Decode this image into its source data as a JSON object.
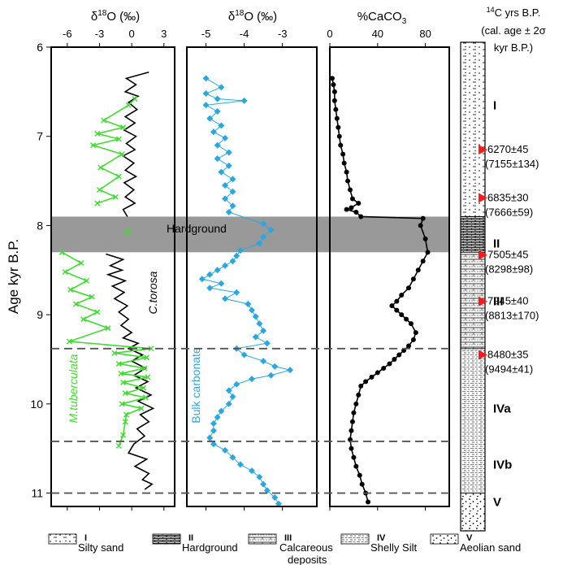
{
  "chart_data": [
    {
      "type": "line",
      "title": "δ18O (‰)",
      "xlim": [
        -7.5,
        4
      ],
      "xticks": [
        "-6",
        "-3",
        "0",
        "3"
      ],
      "ylabel": "Age kyr B.P.",
      "ylim": [
        11.15,
        6
      ],
      "yticks": [
        "6",
        "7",
        "8",
        "9",
        "10",
        "11"
      ],
      "series": [
        {
          "name": "C.torosa",
          "color": "#000000",
          "points": [
            [
              1.6,
              6.28
            ],
            [
              -0.5,
              6.35
            ],
            [
              0.4,
              6.42
            ],
            [
              -0.6,
              6.5
            ],
            [
              0.6,
              6.55
            ],
            [
              -0.3,
              6.62
            ],
            [
              0.5,
              6.7
            ],
            [
              -0.6,
              6.78
            ],
            [
              0.3,
              6.85
            ],
            [
              -0.7,
              6.93
            ],
            [
              0.4,
              7.0
            ],
            [
              -0.5,
              7.08
            ],
            [
              0.3,
              7.15
            ],
            [
              -0.8,
              7.22
            ],
            [
              0.2,
              7.3
            ],
            [
              -0.6,
              7.38
            ],
            [
              0.4,
              7.45
            ],
            [
              -0.7,
              7.52
            ],
            [
              0.2,
              7.6
            ],
            [
              -0.6,
              7.68
            ],
            [
              0.3,
              7.75
            ],
            [
              -0.8,
              7.82
            ],
            [
              -0.4,
              7.9
            ],
            [
              -2.4,
              8.32
            ],
            [
              -0.8,
              8.38
            ],
            [
              -2.0,
              8.45
            ],
            [
              -0.9,
              8.5
            ],
            [
              -2.2,
              8.55
            ],
            [
              -0.6,
              8.62
            ],
            [
              -1.8,
              8.68
            ],
            [
              -0.7,
              8.75
            ],
            [
              -1.6,
              8.82
            ],
            [
              -0.4,
              8.9
            ],
            [
              -1.2,
              8.97
            ],
            [
              -0.3,
              9.05
            ],
            [
              -1.0,
              9.12
            ],
            [
              0.0,
              9.2
            ],
            [
              -0.8,
              9.26
            ],
            [
              0.6,
              9.32
            ],
            [
              -0.3,
              9.38
            ],
            [
              1.0,
              9.45
            ],
            [
              0.0,
              9.52
            ],
            [
              1.3,
              9.6
            ],
            [
              0.2,
              9.68
            ],
            [
              1.5,
              9.75
            ],
            [
              0.4,
              9.82
            ],
            [
              1.8,
              9.9
            ],
            [
              0.6,
              9.97
            ],
            [
              2.0,
              10.05
            ],
            [
              0.8,
              10.12
            ],
            [
              1.6,
              10.2
            ],
            [
              0.5,
              10.28
            ],
            [
              1.2,
              10.36
            ],
            [
              0.2,
              10.45
            ],
            [
              -0.3,
              10.55
            ],
            [
              1.4,
              10.62
            ],
            [
              0.3,
              10.7
            ],
            [
              1.6,
              10.78
            ],
            [
              1.0,
              10.85
            ],
            [
              1.9,
              10.9
            ],
            [
              1.2,
              10.96
            ]
          ]
        },
        {
          "name": "M.tuberculata",
          "color": "#3fdc2f",
          "points": [
            [
              0.3,
              6.58
            ],
            [
              -0.3,
              6.65
            ],
            [
              -2.6,
              6.82
            ],
            [
              -0.8,
              6.9
            ],
            [
              -3.2,
              6.97
            ],
            [
              -1.2,
              7.03
            ],
            [
              -3.6,
              7.1
            ],
            [
              -0.9,
              7.2
            ],
            [
              -2.9,
              7.35
            ],
            [
              -1.2,
              7.45
            ],
            [
              -3.0,
              7.6
            ],
            [
              -1.5,
              7.68
            ],
            [
              -3.2,
              7.75
            ],
            [
              -6.5,
              8.3
            ],
            [
              -4.7,
              8.42
            ],
            [
              -6.2,
              8.52
            ],
            [
              -4.2,
              8.62
            ],
            [
              -5.7,
              8.72
            ],
            [
              -3.7,
              8.8
            ],
            [
              -5.2,
              8.88
            ],
            [
              -3.2,
              8.97
            ],
            [
              -4.5,
              9.05
            ],
            [
              -2.2,
              9.15
            ],
            [
              -5.8,
              9.3
            ],
            [
              1.8,
              9.38
            ],
            [
              -1.6,
              9.43
            ],
            [
              1.4,
              9.48
            ],
            [
              -1.2,
              9.55
            ],
            [
              1.2,
              9.6
            ],
            [
              -1.0,
              9.66
            ],
            [
              1.5,
              9.7
            ],
            [
              -0.8,
              9.76
            ],
            [
              1.1,
              9.82
            ],
            [
              -0.6,
              9.88
            ],
            [
              1.3,
              9.93
            ],
            [
              -0.9,
              10.0
            ],
            [
              0.9,
              10.05
            ],
            [
              -0.5,
              10.12
            ],
            [
              -0.6,
              10.2
            ],
            [
              -0.8,
              10.35
            ],
            [
              -1.2,
              10.47
            ]
          ]
        }
      ],
      "isolated_points": [
        {
          "name": "Hardground",
          "x": -0.4,
          "y": 8.07
        }
      ],
      "annotations": [
        "Hardground",
        "C.torosa",
        "M.tuberculata"
      ]
    },
    {
      "type": "line",
      "title": "δ18O (‰)",
      "xlim": [
        -5.5,
        -2.1
      ],
      "xticks": [
        "-5",
        "-4",
        "-3"
      ],
      "ylim": [
        11.15,
        6
      ],
      "series": [
        {
          "name": "Bulk carbonate",
          "color": "#29a8e0",
          "points": [
            [
              -5.0,
              6.35
            ],
            [
              -4.6,
              6.45
            ],
            [
              -5.0,
              6.52
            ],
            [
              -4.7,
              6.58
            ],
            [
              -4.0,
              6.6
            ],
            [
              -5.0,
              6.65
            ],
            [
              -4.7,
              6.72
            ],
            [
              -4.9,
              6.8
            ],
            [
              -4.6,
              6.88
            ],
            [
              -4.8,
              6.95
            ],
            [
              -4.5,
              7.02
            ],
            [
              -4.7,
              7.1
            ],
            [
              -4.4,
              7.18
            ],
            [
              -4.7,
              7.25
            ],
            [
              -4.4,
              7.33
            ],
            [
              -4.6,
              7.4
            ],
            [
              -4.3,
              7.48
            ],
            [
              -4.5,
              7.55
            ],
            [
              -4.3,
              7.62
            ],
            [
              -4.5,
              7.7
            ],
            [
              -4.3,
              7.78
            ],
            [
              -4.4,
              7.85
            ],
            [
              -3.5,
              7.98
            ],
            [
              -3.3,
              8.05
            ],
            [
              -3.5,
              8.13
            ],
            [
              -3.6,
              8.2
            ],
            [
              -4.1,
              8.28
            ],
            [
              -4.2,
              8.34
            ],
            [
              -4.3,
              8.4
            ],
            [
              -4.5,
              8.45
            ],
            [
              -4.7,
              8.5
            ],
            [
              -4.9,
              8.55
            ],
            [
              -5.1,
              8.6
            ],
            [
              -4.6,
              8.65
            ],
            [
              -4.9,
              8.7
            ],
            [
              -4.2,
              8.75
            ],
            [
              -4.5,
              8.82
            ],
            [
              -3.9,
              8.88
            ],
            [
              -3.8,
              8.95
            ],
            [
              -3.7,
              9.02
            ],
            [
              -3.6,
              9.1
            ],
            [
              -3.5,
              9.18
            ],
            [
              -3.7,
              9.25
            ],
            [
              -3.4,
              9.32
            ],
            [
              -4.2,
              9.38
            ],
            [
              -4.0,
              9.45
            ],
            [
              -3.5,
              9.52
            ],
            [
              -3.2,
              9.58
            ],
            [
              -2.8,
              9.62
            ],
            [
              -3.3,
              9.68
            ],
            [
              -3.8,
              9.72
            ],
            [
              -4.2,
              9.78
            ],
            [
              -4.4,
              9.85
            ],
            [
              -4.3,
              9.92
            ],
            [
              -4.4,
              10.0
            ],
            [
              -4.6,
              10.08
            ],
            [
              -4.7,
              10.15
            ],
            [
              -4.8,
              10.22
            ],
            [
              -4.8,
              10.3
            ],
            [
              -4.9,
              10.38
            ],
            [
              -4.8,
              10.45
            ],
            [
              -4.5,
              10.52
            ],
            [
              -4.3,
              10.6
            ],
            [
              -4.1,
              10.68
            ],
            [
              -3.8,
              10.75
            ],
            [
              -3.6,
              10.82
            ],
            [
              -3.5,
              10.9
            ],
            [
              -3.4,
              10.97
            ],
            [
              -3.2,
              11.05
            ],
            [
              -3.1,
              11.12
            ]
          ]
        }
      ],
      "annotations": [
        "Bulk carbonate"
      ]
    },
    {
      "type": "line",
      "title": "%CaCO3",
      "xlim": [
        0,
        100
      ],
      "xticks": [
        "0",
        "40",
        "80"
      ],
      "ylim": [
        11.15,
        6
      ],
      "series": [
        {
          "name": "%CaCO3",
          "color": "#000000",
          "points": [
            [
              2,
              6.35
            ],
            [
              3,
              6.42
            ],
            [
              4,
              6.5
            ],
            [
              4,
              6.6
            ],
            [
              5,
              6.7
            ],
            [
              6,
              6.8
            ],
            [
              7,
              6.9
            ],
            [
              8,
              7.0
            ],
            [
              9,
              7.1
            ],
            [
              11,
              7.2
            ],
            [
              12,
              7.3
            ],
            [
              14,
              7.4
            ],
            [
              15,
              7.5
            ],
            [
              17,
              7.6
            ],
            [
              19,
              7.7
            ],
            [
              24,
              7.75
            ],
            [
              18,
              7.8
            ],
            [
              14,
              7.82
            ],
            [
              22,
              7.85
            ],
            [
              26,
              7.9
            ],
            [
              78,
              7.92
            ],
            [
              76,
              8.0
            ],
            [
              80,
              8.15
            ],
            [
              82,
              8.3
            ],
            [
              78,
              8.4
            ],
            [
              74,
              8.5
            ],
            [
              70,
              8.6
            ],
            [
              66,
              8.7
            ],
            [
              60,
              8.78
            ],
            [
              56,
              8.85
            ],
            [
              52,
              8.9
            ],
            [
              56,
              8.95
            ],
            [
              60,
              9.0
            ],
            [
              64,
              9.05
            ],
            [
              68,
              9.1
            ],
            [
              72,
              9.2
            ],
            [
              70,
              9.28
            ],
            [
              66,
              9.35
            ],
            [
              62,
              9.4
            ],
            [
              58,
              9.45
            ],
            [
              54,
              9.5
            ],
            [
              50,
              9.55
            ],
            [
              45,
              9.6
            ],
            [
              40,
              9.65
            ],
            [
              35,
              9.7
            ],
            [
              30,
              9.75
            ],
            [
              26,
              9.8
            ],
            [
              24,
              9.9
            ],
            [
              22,
              10.0
            ],
            [
              20,
              10.1
            ],
            [
              19,
              10.2
            ],
            [
              18,
              10.3
            ],
            [
              17,
              10.4
            ],
            [
              18,
              10.5
            ],
            [
              20,
              10.6
            ],
            [
              22,
              10.7
            ],
            [
              25,
              10.8
            ],
            [
              27,
              10.9
            ],
            [
              30,
              11.0
            ],
            [
              32,
              11.1
            ]
          ]
        }
      ]
    }
  ],
  "hardground_band": {
    "y_top": 7.9,
    "y_bottom": 8.3,
    "color": "#999999"
  },
  "dashed_lines_y": [
    9.38,
    10.42,
    11.0
  ],
  "lithology": {
    "header_line1": "14C yrs B.P.",
    "header_line2": "(cal. age ± 2σ",
    "header_line3": "kyr B.P.)",
    "units": [
      {
        "label": "I",
        "y": 6.65
      },
      {
        "label": "II",
        "y": 8.2
      },
      {
        "label": "III",
        "y": 8.85
      },
      {
        "label": "IVa",
        "y": 10.05
      },
      {
        "label": "IVb",
        "y": 10.68
      },
      {
        "label": "V",
        "y": 11.1
      }
    ],
    "dates": [
      {
        "y": 7.15,
        "c14": "6270±45",
        "cal": "(7155±134)"
      },
      {
        "y": 7.69,
        "c14": "6835±30",
        "cal": "(7666±59)"
      },
      {
        "y": 8.33,
        "c14": "7505±45",
        "cal": "(8298±98)"
      },
      {
        "y": 8.85,
        "c14": "7945±40",
        "cal": "(8813±170)"
      },
      {
        "y": 9.45,
        "c14": "8480±35",
        "cal": "(9494±41)"
      }
    ],
    "marker_color": "#ff1a1a"
  },
  "legend": [
    {
      "numeral": "I",
      "label": "Silty sand",
      "pattern": "silty-sand"
    },
    {
      "numeral": "II",
      "label": "Hardground",
      "pattern": "hardground"
    },
    {
      "numeral": "III",
      "label": "Calcareous deposits",
      "pattern": "calcareous"
    },
    {
      "numeral": "IV",
      "label": "Shelly Silt",
      "pattern": "shelly-silt"
    },
    {
      "numeral": "V",
      "label": "Aeolian sand",
      "pattern": "aeolian"
    }
  ]
}
